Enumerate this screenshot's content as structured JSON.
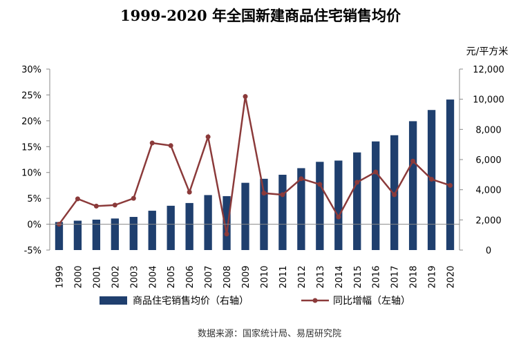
{
  "chart_data": {
    "type": "bar+line",
    "title": "1999-2020 年全国新建商品住宅销售均价",
    "right_axis_unit": "元/平方米",
    "categories": [
      "1999",
      "2000",
      "2001",
      "2002",
      "2003",
      "2004",
      "2005",
      "2006",
      "2007",
      "2008",
      "2009",
      "2010",
      "2011",
      "2012",
      "2013",
      "2014",
      "2015",
      "2016",
      "2017",
      "2018",
      "2019",
      "2020"
    ],
    "series": [
      {
        "name": "商品住宅销售均价（右轴）",
        "type": "bar",
        "axis": "right",
        "color": "#1f3f6e",
        "values": [
          1857,
          1948,
          2017,
          2092,
          2197,
          2608,
          2937,
          3119,
          3645,
          3576,
          4459,
          4725,
          4993,
          5430,
          5850,
          5933,
          6473,
          7203,
          7614,
          8544,
          9287,
          9980
        ]
      },
      {
        "name": "同比增幅（左轴）",
        "type": "line",
        "axis": "left",
        "color": "#8b3a3a",
        "values": [
          0.0,
          4.9,
          3.5,
          3.7,
          5.0,
          15.7,
          15.2,
          6.2,
          16.9,
          -1.9,
          24.7,
          6.0,
          5.7,
          8.8,
          7.7,
          1.4,
          8.1,
          10.1,
          5.7,
          12.2,
          8.7,
          7.5
        ]
      }
    ],
    "left_axis": {
      "min": -5,
      "max": 30,
      "step": 5,
      "ticks": [
        "-5%",
        "0%",
        "5%",
        "10%",
        "15%",
        "20%",
        "25%",
        "30%"
      ]
    },
    "right_axis": {
      "min": 0,
      "max": 12000,
      "step": 2000,
      "ticks": [
        "0",
        "2,000",
        "4,000",
        "6,000",
        "8,000",
        "10,000",
        "12,000"
      ]
    },
    "legend_position": "bottom",
    "grid": false,
    "source": "数据来源：国家统计局、易居研究院"
  }
}
